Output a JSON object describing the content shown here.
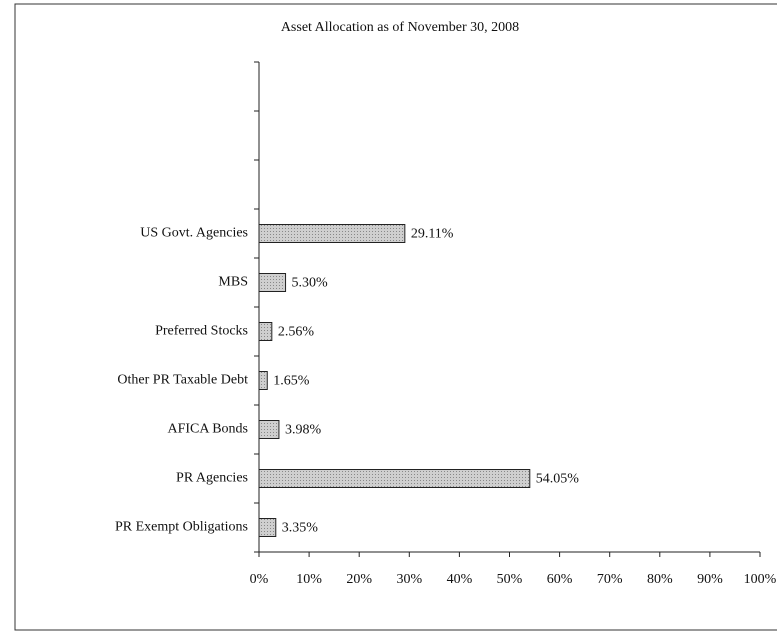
{
  "chart_data": {
    "type": "hbar",
    "title": "Asset Allocation as of November 30, 2008",
    "categories": [
      "PR Exempt Obligations",
      "PR Agencies",
      "AFICA Bonds",
      "Other PR Taxable Debt",
      "Preferred Stocks",
      "MBS",
      "US Govt. Agencies",
      null,
      null,
      null
    ],
    "values": [
      3.35,
      54.05,
      3.98,
      1.65,
      2.56,
      5.3,
      29.11,
      null,
      null,
      null
    ],
    "value_labels": [
      "3.35%",
      "54.05%",
      "3.98%",
      "1.65%",
      "2.56%",
      "5.30%",
      "29.11%",
      null,
      null,
      null
    ],
    "color": "#c8c8c8",
    "xlim": [
      0,
      100
    ],
    "xticks": [
      {
        "value": 0,
        "label": "0%"
      },
      {
        "value": 10,
        "label": "10%"
      },
      {
        "value": 20,
        "label": "20%"
      },
      {
        "value": 30,
        "label": "30%"
      },
      {
        "value": 40,
        "label": "40%"
      },
      {
        "value": 50,
        "label": "50%"
      },
      {
        "value": 60,
        "label": "60%"
      },
      {
        "value": 70,
        "label": "70%"
      },
      {
        "value": 80,
        "label": "80%"
      },
      {
        "value": 90,
        "label": "90%"
      },
      {
        "value": 100,
        "label": "100%"
      }
    ],
    "grid": false
  }
}
